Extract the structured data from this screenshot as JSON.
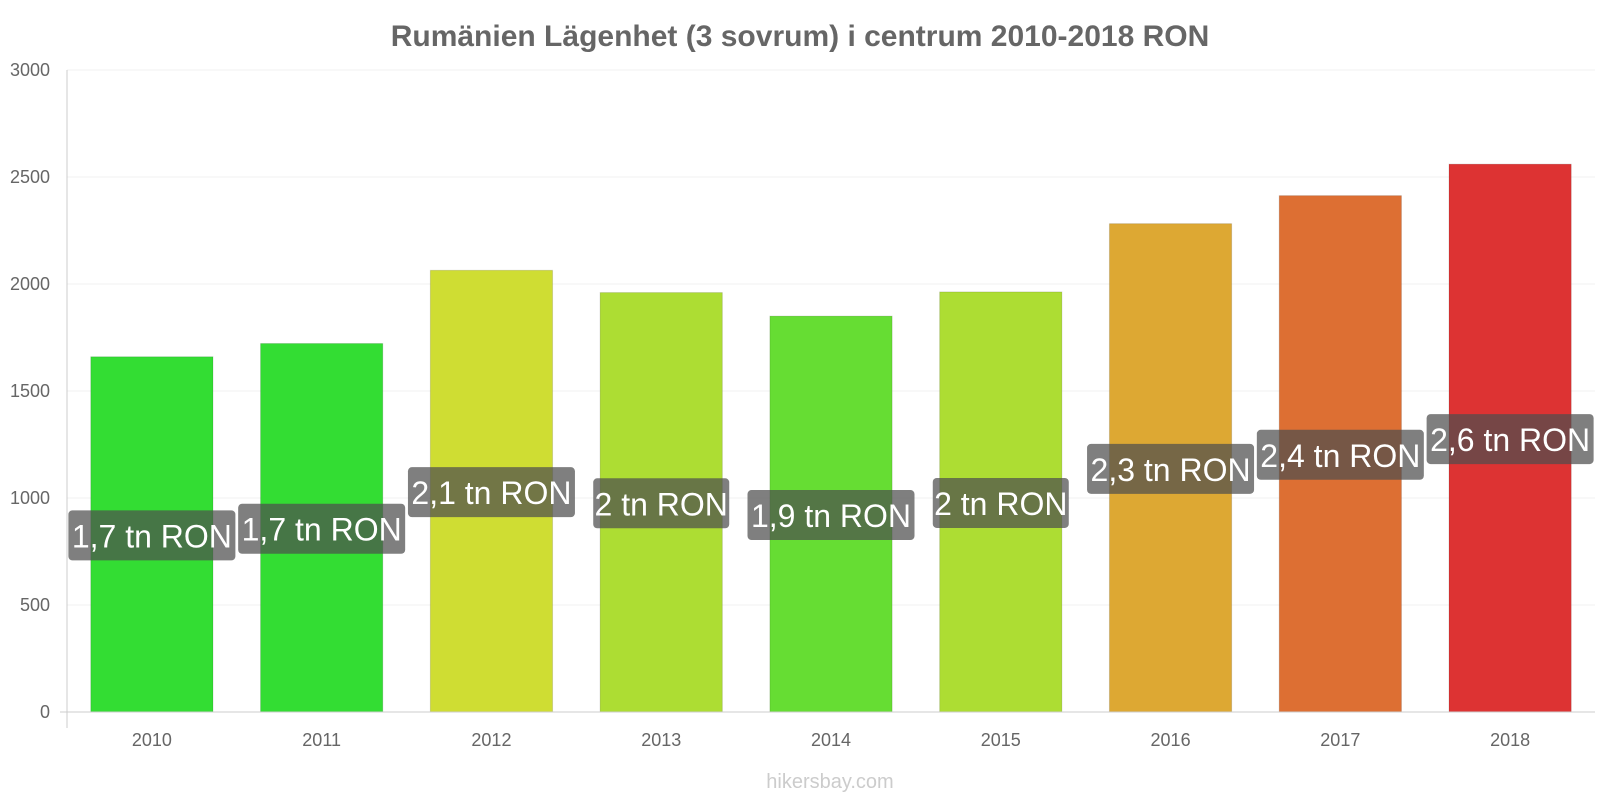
{
  "chart_data": {
    "type": "bar",
    "title": "Rumänien Lägenhet (3 sovrum) i centrum 2010-2018 RON",
    "xlabel": "",
    "ylabel": "",
    "categories": [
      "2010",
      "2011",
      "2012",
      "2013",
      "2014",
      "2015",
      "2016",
      "2017",
      "2018"
    ],
    "values": [
      1660,
      1722,
      2064,
      1960,
      1850,
      1963,
      2282,
      2413,
      2560
    ],
    "data_labels": [
      "1,7 tn RON",
      "1,7 tn RON",
      "2,1 tn RON",
      "2 tn RON",
      "1,9 tn RON",
      "2 tn RON",
      "2,3 tn RON",
      "2,4 tn RON",
      "2,6 tn RON"
    ],
    "colors": [
      "#33dd33",
      "#33dd33",
      "#cfdd33",
      "#addd33",
      "#66dd33",
      "#addd33",
      "#dda833",
      "#dd6f33",
      "#dd3333"
    ],
    "ylim": [
      0,
      3000
    ],
    "yticks": [
      "0",
      "500",
      "1000",
      "1500",
      "2000",
      "2500",
      "3000"
    ],
    "grid": true,
    "legend": "none"
  },
  "credit": "hikersbay.com"
}
